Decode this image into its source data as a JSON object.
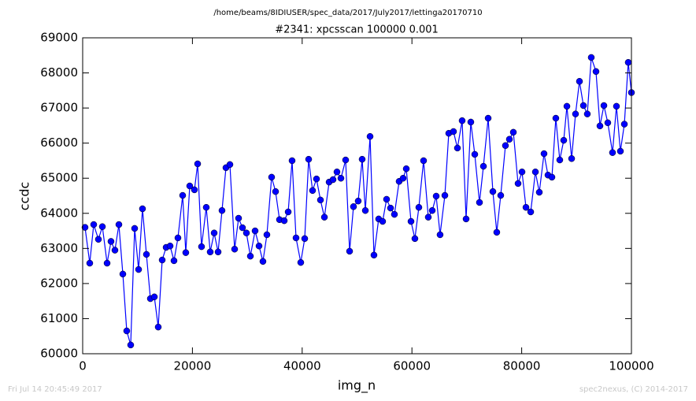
{
  "chart_data": {
    "type": "line",
    "title": "/home/beams/8IDIUSER/spec_data/2017/July2017/lettinga20170710",
    "subtitle": "#2341: xpcsscan 100000 0.001",
    "xlabel": "img_n",
    "ylabel": "ccdc",
    "x": [
      430,
      1290,
      2010,
      2870,
      3590,
      4450,
      5160,
      5880,
      6600,
      7320,
      8030,
      8750,
      9470,
      10190,
      10900,
      11620,
      12340,
      13060,
      13770,
      14490,
      15210,
      15930,
      16640,
      17360,
      18220,
      18790,
      19510,
      20370,
      20950,
      21660,
      22520,
      23240,
      23960,
      24680,
      25390,
      26110,
      26830,
      27690,
      28410,
      29120,
      29840,
      30560,
      31420,
      32140,
      32850,
      33570,
      34430,
      35150,
      35870,
      36730,
      37450,
      38160,
      38880,
      39740,
      40460,
      41180,
      41890,
      42610,
      43330,
      44050,
      44910,
      45620,
      46340,
      47060,
      47920,
      48640,
      49350,
      50210,
      50930,
      51510,
      52370,
      53080,
      53940,
      54660,
      55380,
      56100,
      56810,
      57670,
      58390,
      58970,
      59830,
      60540,
      61260,
      62120,
      62980,
      63700,
      64420,
      65130,
      66000,
      66710,
      67570,
      68290,
      69150,
      69870,
      70730,
      71450,
      72310,
      73030,
      73890,
      74750,
      75460,
      76180,
      77040,
      77760,
      78480,
      79340,
      80060,
      80780,
      81640,
      82500,
      83210,
      84070,
      84790,
      85510,
      86220,
      86940,
      87660,
      88240,
      89100,
      89810,
      90530,
      91250,
      91960,
      92680,
      93540,
      94260,
      94980,
      95690,
      96550,
      97270,
      97990,
      98710,
      99420,
      100000
    ],
    "series": [
      {
        "name": "ccdc",
        "color": "#0000ff",
        "values": [
          63600,
          62580,
          63680,
          63260,
          63620,
          62580,
          63200,
          62950,
          63680,
          62270,
          60650,
          60250,
          63570,
          62400,
          64130,
          62830,
          61570,
          61620,
          60760,
          62670,
          63030,
          63070,
          62650,
          63300,
          64510,
          62880,
          64780,
          64670,
          65410,
          63050,
          64170,
          62900,
          63440,
          62900,
          64080,
          65300,
          65390,
          62980,
          63860,
          63590,
          63440,
          62780,
          63500,
          63070,
          62630,
          63390,
          65030,
          64620,
          63820,
          63790,
          64040,
          65500,
          63300,
          62600,
          63280,
          65540,
          64650,
          64980,
          64380,
          63890,
          64890,
          64960,
          65180,
          65000,
          65520,
          62920,
          64190,
          64350,
          65540,
          64080,
          66190,
          62810,
          63840,
          63770,
          64400,
          64150,
          63970,
          64910,
          65000,
          65270,
          63770,
          63280,
          64170,
          65500,
          63890,
          64080,
          64490,
          63390,
          64510,
          66280,
          66330,
          65860,
          66640,
          63840,
          66600,
          65680,
          64310,
          65340,
          66710,
          64620,
          63460,
          64510,
          65930,
          66110,
          66310,
          64850,
          65180,
          64170,
          64040,
          65180,
          64600,
          65700,
          65090,
          65030,
          66710,
          65520,
          66080,
          67050,
          65560,
          66830,
          67760,
          67070,
          66830,
          68440,
          68040,
          66490,
          67070,
          66580,
          65730,
          67050,
          65770,
          66540,
          68300,
          67440
        ]
      }
    ],
    "xlim": [
      0,
      100000
    ],
    "xticks": [
      0,
      20000,
      40000,
      60000,
      80000,
      100000
    ],
    "ylim": [
      60000,
      69000
    ],
    "yticks": [
      60000,
      61000,
      62000,
      63000,
      64000,
      65000,
      66000,
      67000,
      68000,
      69000
    ],
    "grid": false
  },
  "footer": {
    "left": "Fri Jul 14 20:45:49 2017",
    "right": "spec2nexus, (C) 2014-2017"
  }
}
